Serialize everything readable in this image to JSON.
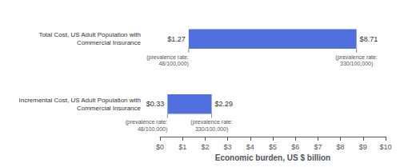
{
  "chart_data": {
    "type": "bar",
    "orientation": "horizontal",
    "categories": [
      "Total Cost, US Adult Population with\nCommercial Insurance",
      "Incremental Cost, US Adult Population with\nCommercial Insurance"
    ],
    "starts": [
      1.27,
      0.33
    ],
    "values": [
      8.71,
      2.29
    ],
    "start_labels": [
      "$1.27",
      "$0.33"
    ],
    "value_labels": [
      "$8.71",
      "$2.29"
    ],
    "data_labels": true,
    "start_notes": [
      "(prevalence rate:\n48/100,000)",
      "(prevalence rate:\n48/100,000)"
    ],
    "end_notes": [
      "(prevalence rate:\n330/100,000)",
      "(prevalence rate:\n330/100,000)"
    ],
    "xlabel": "Economic burden, US $ billion",
    "xlim": [
      0,
      10
    ],
    "xticks": [
      {
        "value": 0,
        "label": "$0"
      },
      {
        "value": 1,
        "label": "$1"
      },
      {
        "value": 2,
        "label": "$2"
      },
      {
        "value": 3,
        "label": "$3"
      },
      {
        "value": 4,
        "label": "$4"
      },
      {
        "value": 5,
        "label": "$5"
      },
      {
        "value": 6,
        "label": "$6"
      },
      {
        "value": 7,
        "label": "$7"
      },
      {
        "value": 8,
        "label": "$8"
      },
      {
        "value": 9,
        "label": "$9"
      },
      {
        "value": 10,
        "label": "$10"
      }
    ],
    "grid": false
  }
}
